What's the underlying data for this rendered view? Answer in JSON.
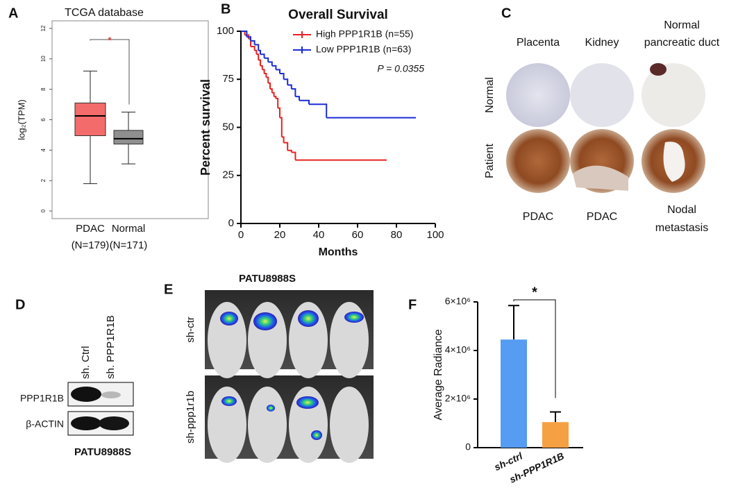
{
  "panel_labels": [
    "A",
    "B",
    "C",
    "D",
    "E",
    "F"
  ],
  "chart_data": [
    {
      "type": "box",
      "title": "TCGA database",
      "y_label": "log₂(TPM)",
      "categories": [
        "PDAC",
        "Normal"
      ],
      "category_counts": [
        "(N=179)",
        "(N=171)"
      ],
      "boxes": [
        {
          "whislo": 1.8,
          "q1": 4.95,
          "med": 6.25,
          "q3": 7.1,
          "whishi": 9.2
        },
        {
          "whislo": 3.1,
          "q1": 4.4,
          "med": 4.75,
          "q3": 5.3,
          "whishi": 6.5
        }
      ],
      "colors": [
        "#f46b6b",
        "#8f8f8f"
      ],
      "ylim": [
        -0.5,
        12.5
      ],
      "yticks": [
        0,
        2,
        4,
        6,
        8,
        10,
        12
      ],
      "annotation": "*"
    },
    {
      "type": "survival",
      "title": "Overall Survival",
      "x_label": "Months",
      "y_label": "Percent survival",
      "xlim": [
        0,
        100
      ],
      "xticks": [
        0,
        20,
        40,
        60,
        80,
        100
      ],
      "ylim": [
        0,
        100
      ],
      "yticks": [
        0,
        25,
        50,
        75,
        100
      ],
      "series": [
        {
          "name": "High PPP1R1B (n=55)",
          "color": "#e8201f",
          "x": [
            0,
            2,
            4,
            5,
            7,
            8,
            9,
            10,
            11,
            12,
            13,
            14,
            15,
            16,
            17,
            18,
            19,
            20,
            21,
            22,
            24,
            26,
            28,
            75
          ],
          "values": [
            100,
            98,
            96,
            92,
            90,
            88,
            85,
            82,
            80,
            78,
            76,
            73,
            70,
            68,
            66,
            65,
            60,
            55,
            45,
            42,
            38,
            37,
            33,
            33
          ]
        },
        {
          "name": "Low PPP1R1B (n=63)",
          "color": "#1a2bd4",
          "x": [
            0,
            3,
            5,
            7,
            9,
            10,
            12,
            14,
            16,
            18,
            20,
            22,
            24,
            26,
            28,
            30,
            35,
            44,
            90
          ],
          "values": [
            100,
            97,
            95,
            93,
            90,
            88,
            86,
            84,
            82,
            80,
            78,
            75,
            72,
            70,
            66,
            64,
            62,
            55,
            55
          ]
        }
      ],
      "annotation": "P = 0.0355"
    },
    {
      "type": "bar",
      "y_label": "Average Radiance",
      "categories": [
        "sh-ctrl",
        "sh-PPP1R1B"
      ],
      "values": [
        4450000,
        1050000
      ],
      "errors": [
        1400000,
        420000
      ],
      "colors": [
        "#559cf2",
        "#f5a043"
      ],
      "ylim": [
        0,
        6000000
      ],
      "yticks": [
        0,
        {
          "value": 2000000,
          "label": "2×10⁶"
        },
        {
          "value": 4000000,
          "label": "4×10⁶"
        },
        {
          "value": 6000000,
          "label": "6×10⁶"
        }
      ],
      "annotation": "*"
    }
  ],
  "panel_c": {
    "columns": [
      [
        "Placenta"
      ],
      [
        "Kidney"
      ],
      [
        "Normal",
        "pancreatic duct"
      ]
    ],
    "rows": [
      "Normal",
      "Patient"
    ],
    "bottom_labels": [
      [
        "PDAC"
      ],
      [
        "PDAC"
      ],
      [
        "Nodal",
        "metastasis"
      ]
    ]
  },
  "panel_d": {
    "lanes": [
      "sh. Ctrl",
      "sh. PPP1R1B"
    ],
    "bands": [
      "PPP1R1B",
      "β-ACTIN"
    ],
    "cell_line": "PATU8988S"
  },
  "panel_e": {
    "title": "PATU8988S",
    "rows": [
      "sh-ctr",
      "sh-ppp1r1b"
    ]
  }
}
